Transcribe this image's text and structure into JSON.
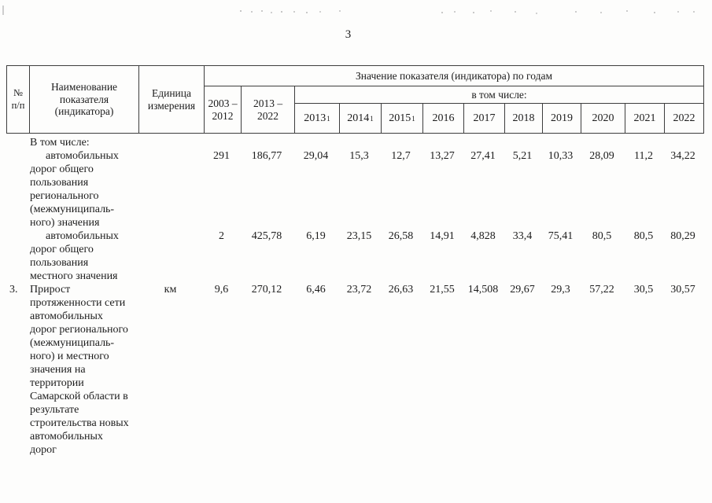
{
  "page": {
    "number": "3"
  },
  "table": {
    "header": {
      "col_num": "№ п/п",
      "col_name": "Наименование показателя (индикатора)",
      "col_unit": "Единица измерения",
      "col_values_group": "Значение показателя (индикатора) по годам",
      "col_2003_2012": "2003 –\n2012",
      "col_2013_2022": "2013 –\n2022",
      "col_subgroup": "в том числе:",
      "years": [
        {
          "label": "2013",
          "sup": "1"
        },
        {
          "label": "2014",
          "sup": "1"
        },
        {
          "label": "2015",
          "sup": "1"
        },
        {
          "label": "2016",
          "sup": ""
        },
        {
          "label": "2017",
          "sup": ""
        },
        {
          "label": "2018",
          "sup": ""
        },
        {
          "label": "2019",
          "sup": ""
        },
        {
          "label": "2020",
          "sup": ""
        },
        {
          "label": "2021",
          "sup": ""
        },
        {
          "label": "2022",
          "sup": ""
        }
      ]
    },
    "rows": [
      {
        "num": "",
        "unit": "",
        "values_on_line": 2,
        "name_lines": [
          {
            "text": "В том числе:",
            "indent": false
          },
          {
            "text": "автомобильных",
            "indent": true
          },
          {
            "text": "дорог общего",
            "indent": false
          },
          {
            "text": "пользования",
            "indent": false
          },
          {
            "text": "регионального",
            "indent": false
          },
          {
            "text": "(межмуниципаль-",
            "indent": false
          },
          {
            "text": "ного) значения",
            "indent": false
          }
        ],
        "values": [
          "291",
          "186,77",
          "29,04",
          "15,3",
          "12,7",
          "13,27",
          "27,41",
          "5,21",
          "10,33",
          "28,09",
          "11,2",
          "34,22"
        ]
      },
      {
        "num": "",
        "unit": "",
        "values_on_line": 1,
        "name_lines": [
          {
            "text": "автомобильных",
            "indent": true
          },
          {
            "text": "дорог общего",
            "indent": false
          },
          {
            "text": "пользования",
            "indent": false
          },
          {
            "text": "местного значения",
            "indent": false
          }
        ],
        "values": [
          "2",
          "425,78",
          "6,19",
          "23,15",
          "26,58",
          "14,91",
          "4,828",
          "33,4",
          "75,41",
          "80,5",
          "80,5",
          "80,29"
        ]
      },
      {
        "num": "3.",
        "unit": "км",
        "values_on_line": 1,
        "name_lines": [
          {
            "text": "Прирост",
            "indent": false
          },
          {
            "text": "протяженности сети",
            "indent": false
          },
          {
            "text": "автомобильных",
            "indent": false
          },
          {
            "text": "дорог регионального",
            "indent": false
          },
          {
            "text": "(межмуниципаль-",
            "indent": false
          },
          {
            "text": "ного) и местного",
            "indent": false
          },
          {
            "text": "значения на",
            "indent": false
          },
          {
            "text": "территории",
            "indent": false
          },
          {
            "text": "Самарской области в",
            "indent": false
          },
          {
            "text": "результате",
            "indent": false
          },
          {
            "text": "строительства новых",
            "indent": false
          },
          {
            "text": "автомобильных",
            "indent": false
          },
          {
            "text": "дорог",
            "indent": false
          }
        ],
        "values": [
          "9,6",
          "270,12",
          "6,46",
          "23,72",
          "26,63",
          "21,55",
          "14,508",
          "29,67",
          "29,3",
          "57,22",
          "30,5",
          "30,57"
        ]
      }
    ]
  }
}
